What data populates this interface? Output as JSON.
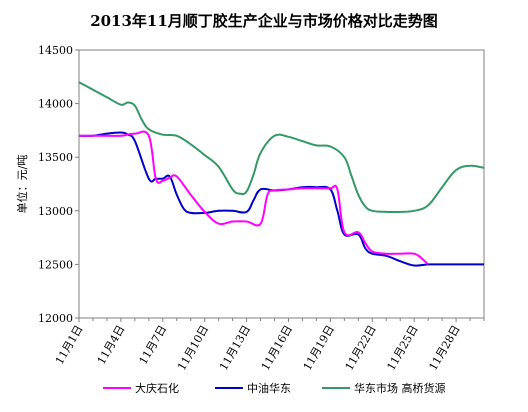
{
  "chart_data": {
    "type": "line",
    "title": "2013年11月顺丁胶生产企业与市场价格对比走势图",
    "ylabel": "单位：元/吨",
    "xlabel": "",
    "ylim": [
      12000,
      14500
    ],
    "yticks": [
      12000,
      12500,
      13000,
      13500,
      14000,
      14500
    ],
    "xlim": [
      1,
      30
    ],
    "xticks": [
      1,
      4,
      7,
      10,
      13,
      16,
      19,
      22,
      25,
      28
    ],
    "xtick_labels": [
      "11月1日",
      "11月4日",
      "11月7日",
      "11月10日",
      "11月13日",
      "11月16日",
      "11月19日",
      "11月22日",
      "11月25日",
      "11月28日"
    ],
    "grid": false,
    "legend": "bottom",
    "series": [
      {
        "name": "大庆石化",
        "color": "#ff00ff",
        "x": [
          1,
          2,
          3,
          4,
          5,
          6,
          6.5,
          7,
          7.5,
          8,
          9,
          10,
          11,
          12,
          13,
          14,
          14.5,
          15,
          16,
          17,
          18,
          19,
          19.5,
          20,
          21,
          21.5,
          22,
          23,
          24,
          25,
          25.5,
          26
        ],
        "values": [
          13700,
          13700,
          13700,
          13700,
          13720,
          13700,
          13300,
          13280,
          13310,
          13320,
          13150,
          12990,
          12880,
          12900,
          12900,
          12880,
          13150,
          13190,
          13200,
          13210,
          13210,
          13210,
          13200,
          12800,
          12800,
          12700,
          12620,
          12600,
          12600,
          12600,
          12560,
          12500
        ]
      },
      {
        "name": "中油华东",
        "color": "#0000cc",
        "x": [
          1,
          2,
          3,
          4,
          4.5,
          5,
          6,
          6.5,
          7,
          7.5,
          8,
          8.5,
          9,
          10,
          11,
          12,
          13,
          13.5,
          14,
          15,
          16,
          17,
          18,
          19,
          19.5,
          20,
          21,
          21.5,
          22,
          23,
          24,
          25,
          26,
          27,
          28,
          29,
          30
        ],
        "values": [
          13700,
          13700,
          13720,
          13730,
          13710,
          13650,
          13300,
          13300,
          13300,
          13320,
          13150,
          13020,
          12980,
          12980,
          13000,
          13000,
          12990,
          13100,
          13200,
          13190,
          13200,
          13220,
          13220,
          13200,
          13000,
          12780,
          12780,
          12650,
          12600,
          12580,
          12530,
          12490,
          12500,
          12500,
          12500,
          12500,
          12500
        ]
      },
      {
        "name": "华东市场 高桥货源",
        "color": "#339966",
        "x": [
          1,
          2,
          3,
          4,
          4.5,
          5,
          5.5,
          6,
          7,
          8,
          9,
          10,
          11,
          12,
          12.5,
          13,
          13.5,
          14,
          15,
          16,
          17,
          18,
          19,
          20,
          20.5,
          21,
          21.5,
          22,
          23,
          24,
          25,
          26,
          27,
          28,
          29,
          30
        ],
        "values": [
          14200,
          14130,
          14060,
          13990,
          14010,
          13980,
          13850,
          13760,
          13710,
          13700,
          13620,
          13520,
          13410,
          13200,
          13160,
          13180,
          13340,
          13540,
          13700,
          13690,
          13650,
          13610,
          13600,
          13500,
          13330,
          13150,
          13040,
          13000,
          12990,
          12990,
          13000,
          13050,
          13220,
          13380,
          13420,
          13400
        ]
      }
    ]
  }
}
